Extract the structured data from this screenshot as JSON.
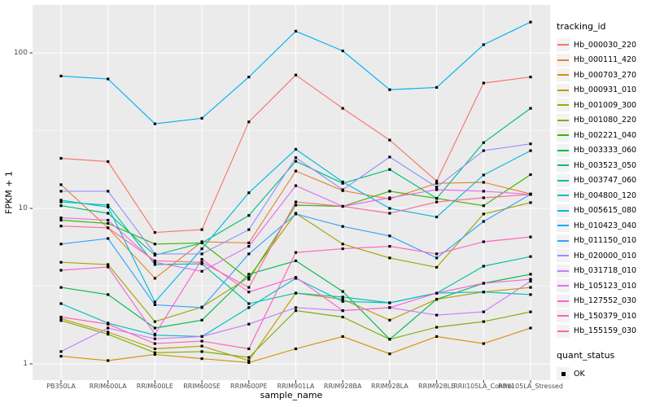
{
  "figure": {
    "background": "#FFFFFF",
    "panel_background": "#EBEBEB",
    "gridline_color": "#FFFFFF",
    "tick_color": "#333333",
    "tick_text_color": "#4D4D4D",
    "point_color": "#000000"
  },
  "axes": {
    "x_title": "sample_name",
    "y_title": "FPKM + 1",
    "y_ticks": [
      {
        "label": "100",
        "value": 100
      },
      {
        "label": "10",
        "value": 10
      },
      {
        "label": "1",
        "value": 1
      }
    ]
  },
  "legend": {
    "tracking_title": "tracking_id",
    "quant_title": "quant_status",
    "quant_items": [
      {
        "label": "OK",
        "shape": "filled-black-square"
      }
    ]
  },
  "chart_data": {
    "type": "line",
    "title": "",
    "xlabel": "sample_name",
    "ylabel": "FPKM + 1",
    "y_scale": "log10",
    "ylim": [
      0.79,
      202
    ],
    "y_major_breaks": [
      1,
      10,
      100
    ],
    "y_minor_breaks": [
      3.162,
      31.623
    ],
    "grid": true,
    "legend_position": "right",
    "marker": "black-square (quant_status = OK)",
    "categories": [
      "PB350LA",
      "RRIM600LA",
      "RRIM600LE",
      "RRIM600SE",
      "RRIM600PE",
      "RRIM901LA",
      "RRIM928BA",
      "RRIM928LA",
      "RRIM928LE",
      "RRII105LA_Control",
      "RRII105LA_Stressed"
    ],
    "series": [
      {
        "name": "Hb_000030_220",
        "color": "#F8766D",
        "values": [
          21,
          20,
          7.0,
          7.3,
          36,
          72,
          44,
          27.5,
          15,
          64,
          70
        ]
      },
      {
        "name": "Hb_000111_420",
        "color": "#EA8331",
        "values": [
          14.2,
          7.5,
          3.55,
          6.1,
          6.0,
          17.4,
          13.0,
          11.5,
          14.5,
          14.7,
          12.4
        ]
      },
      {
        "name": "Hb_000703_270",
        "color": "#D89000",
        "values": [
          1.12,
          1.05,
          1.15,
          1.08,
          1.02,
          1.25,
          1.5,
          1.16,
          1.5,
          1.35,
          1.7
        ]
      },
      {
        "name": "Hb_000931_010",
        "color": "#C09B00",
        "values": [
          1.95,
          1.6,
          1.25,
          1.3,
          1.05,
          2.85,
          2.6,
          1.91,
          2.6,
          2.9,
          3.1
        ]
      },
      {
        "name": "Hb_001009_300",
        "color": "#A3A500",
        "values": [
          4.5,
          4.35,
          1.87,
          2.32,
          3.6,
          9.3,
          5.9,
          4.8,
          4.18,
          9.2,
          10.9
        ]
      },
      {
        "name": "Hb_001080_220",
        "color": "#7CAE00",
        "values": [
          1.9,
          1.55,
          1.18,
          1.2,
          1.1,
          2.2,
          2.0,
          1.44,
          1.72,
          1.87,
          2.16
        ]
      },
      {
        "name": "Hb_002221_040",
        "color": "#39B600",
        "values": [
          8.4,
          8.0,
          5.9,
          6.0,
          3.5,
          10.5,
          10.3,
          12.9,
          11.6,
          10.4,
          16.5
        ]
      },
      {
        "name": "Hb_003333_060",
        "color": "#00BB4E",
        "values": [
          3.1,
          2.79,
          1.7,
          1.91,
          3.77,
          4.6,
          2.92,
          1.44,
          2.6,
          3.3,
          3.77
        ]
      },
      {
        "name": "Hb_003523_050",
        "color": "#00BF7D",
        "values": [
          10.4,
          9.3,
          5.0,
          6.0,
          9.0,
          20.1,
          14.5,
          17.8,
          11.6,
          26.5,
          44
        ]
      },
      {
        "name": "Hb_003747_060",
        "color": "#00C1A3",
        "values": [
          11.0,
          10.5,
          4.35,
          4.4,
          2.44,
          2.85,
          2.69,
          2.47,
          2.85,
          4.25,
          4.9
        ]
      },
      {
        "name": "Hb_004800_120",
        "color": "#00BFC4",
        "values": [
          2.44,
          1.83,
          1.53,
          1.5,
          2.3,
          3.55,
          2.52,
          2.47,
          2.85,
          2.9,
          2.79
        ]
      },
      {
        "name": "Hb_005615_080",
        "color": "#00BAE0",
        "values": [
          11.3,
          10.2,
          2.5,
          5.5,
          12.6,
          24.0,
          14.8,
          10.0,
          8.8,
          16.4,
          23.5
        ]
      },
      {
        "name": "Hb_010423_040",
        "color": "#00B0F6",
        "values": [
          71,
          68,
          35,
          38,
          70,
          138,
          103,
          58,
          60,
          113,
          158
        ]
      },
      {
        "name": "Hb_011150_010",
        "color": "#35A2FF",
        "values": [
          5.9,
          6.4,
          2.4,
          2.3,
          5.1,
          9.2,
          7.65,
          6.65,
          4.8,
          8.25,
          12.3
        ]
      },
      {
        "name": "Hb_020000_010",
        "color": "#9590FF",
        "values": [
          12.9,
          12.9,
          5.1,
          5.1,
          7.3,
          21.2,
          13.2,
          21.4,
          13.7,
          23.5,
          26
        ]
      },
      {
        "name": "Hb_031718_010",
        "color": "#C77CFF",
        "values": [
          1.2,
          1.7,
          1.45,
          1.5,
          1.8,
          2.3,
          2.2,
          2.3,
          2.06,
          2.16,
          3.4
        ]
      },
      {
        "name": "Hb_105123_010",
        "color": "#E76BF3",
        "values": [
          8.7,
          8.4,
          4.5,
          3.94,
          5.7,
          14.0,
          10.3,
          11.7,
          13.2,
          12.9,
          12.3
        ]
      },
      {
        "name": "Hb_127552_030",
        "color": "#FA62DB",
        "values": [
          4.0,
          4.2,
          1.55,
          4.7,
          2.9,
          3.6,
          2.2,
          2.3,
          2.85,
          3.3,
          3.5
        ]
      },
      {
        "name": "Hb_150379_010",
        "color": "#FF62BC",
        "values": [
          2.0,
          1.8,
          1.35,
          1.4,
          1.25,
          5.2,
          5.5,
          5.7,
          5.1,
          6.1,
          6.55
        ]
      },
      {
        "name": "Hb_155159_030",
        "color": "#FF6A98",
        "values": [
          7.7,
          7.5,
          4.6,
          4.5,
          3.1,
          11.0,
          10.3,
          9.3,
          11.0,
          11.7,
          12.3
        ]
      }
    ]
  }
}
